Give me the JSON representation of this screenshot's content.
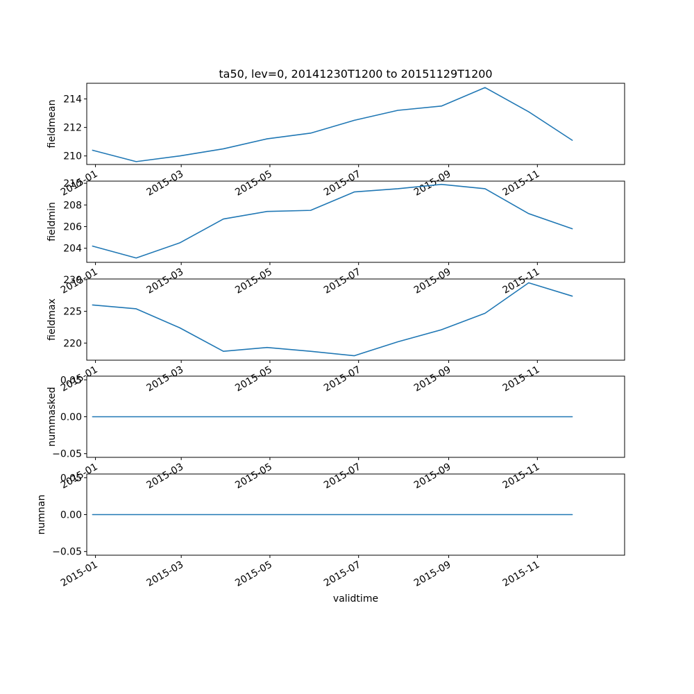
{
  "chart_data": {
    "type": "line",
    "title": "ta50, lev=0, 20141230T1200 to 20151129T1200",
    "xlabel": "validtime",
    "x": [
      "2014-12-30",
      "2015-01-29",
      "2015-02-28",
      "2015-03-30",
      "2015-04-29",
      "2015-05-29",
      "2015-06-28",
      "2015-07-28",
      "2015-08-27",
      "2015-09-26",
      "2015-10-26",
      "2015-11-25"
    ],
    "x_ticks": [
      "2015-01-01",
      "2015-03-01",
      "2015-05-01",
      "2015-07-01",
      "2015-09-01",
      "2015-11-01"
    ],
    "x_tick_labels": [
      "2015-01",
      "2015-03",
      "2015-05",
      "2015-07",
      "2015-09",
      "2015-11"
    ],
    "xlim": [
      "2014-12-26",
      "2015-12-31"
    ],
    "line_color": "#1f77b4",
    "grid": false,
    "panels": [
      {
        "ylabel": "fieldmean",
        "ylim": [
          209.4,
          215.1
        ],
        "yticks": [
          210,
          212,
          214
        ],
        "ytick_labels": [
          "210",
          "212",
          "214"
        ],
        "values": [
          210.4,
          209.6,
          210.0,
          210.5,
          211.2,
          211.6,
          212.5,
          213.2,
          213.5,
          214.8,
          213.1,
          211.1
        ]
      },
      {
        "ylabel": "fieldmin",
        "ylim": [
          202.7,
          210.2
        ],
        "yticks": [
          204,
          206,
          208,
          210
        ],
        "ytick_labels": [
          "204",
          "206",
          "208",
          "210"
        ],
        "values": [
          204.2,
          203.1,
          204.5,
          206.7,
          207.4,
          207.5,
          209.2,
          209.5,
          209.9,
          209.5,
          207.2,
          205.8
        ]
      },
      {
        "ylabel": "fieldmax",
        "ylim": [
          217.3,
          230.1
        ],
        "yticks": [
          220,
          225,
          230
        ],
        "ytick_labels": [
          "220",
          "225",
          "230"
        ],
        "values": [
          226.0,
          225.4,
          222.4,
          218.7,
          219.3,
          218.7,
          218.0,
          220.2,
          222.1,
          224.7,
          229.5,
          227.4
        ]
      },
      {
        "ylabel": "nummasked",
        "ylim": [
          -0.055,
          0.055
        ],
        "yticks": [
          -0.05,
          0.0,
          0.05
        ],
        "ytick_labels": [
          "−0.05",
          "0.00",
          "0.05"
        ],
        "values": [
          0,
          0,
          0,
          0,
          0,
          0,
          0,
          0,
          0,
          0,
          0,
          0
        ]
      },
      {
        "ylabel": "numnan",
        "ylim": [
          -0.055,
          0.055
        ],
        "yticks": [
          -0.05,
          0.0,
          0.05
        ],
        "ytick_labels": [
          "−0.05",
          "0.00",
          "0.05"
        ],
        "values": [
          0,
          0,
          0,
          0,
          0,
          0,
          0,
          0,
          0,
          0,
          0,
          0
        ]
      }
    ]
  }
}
